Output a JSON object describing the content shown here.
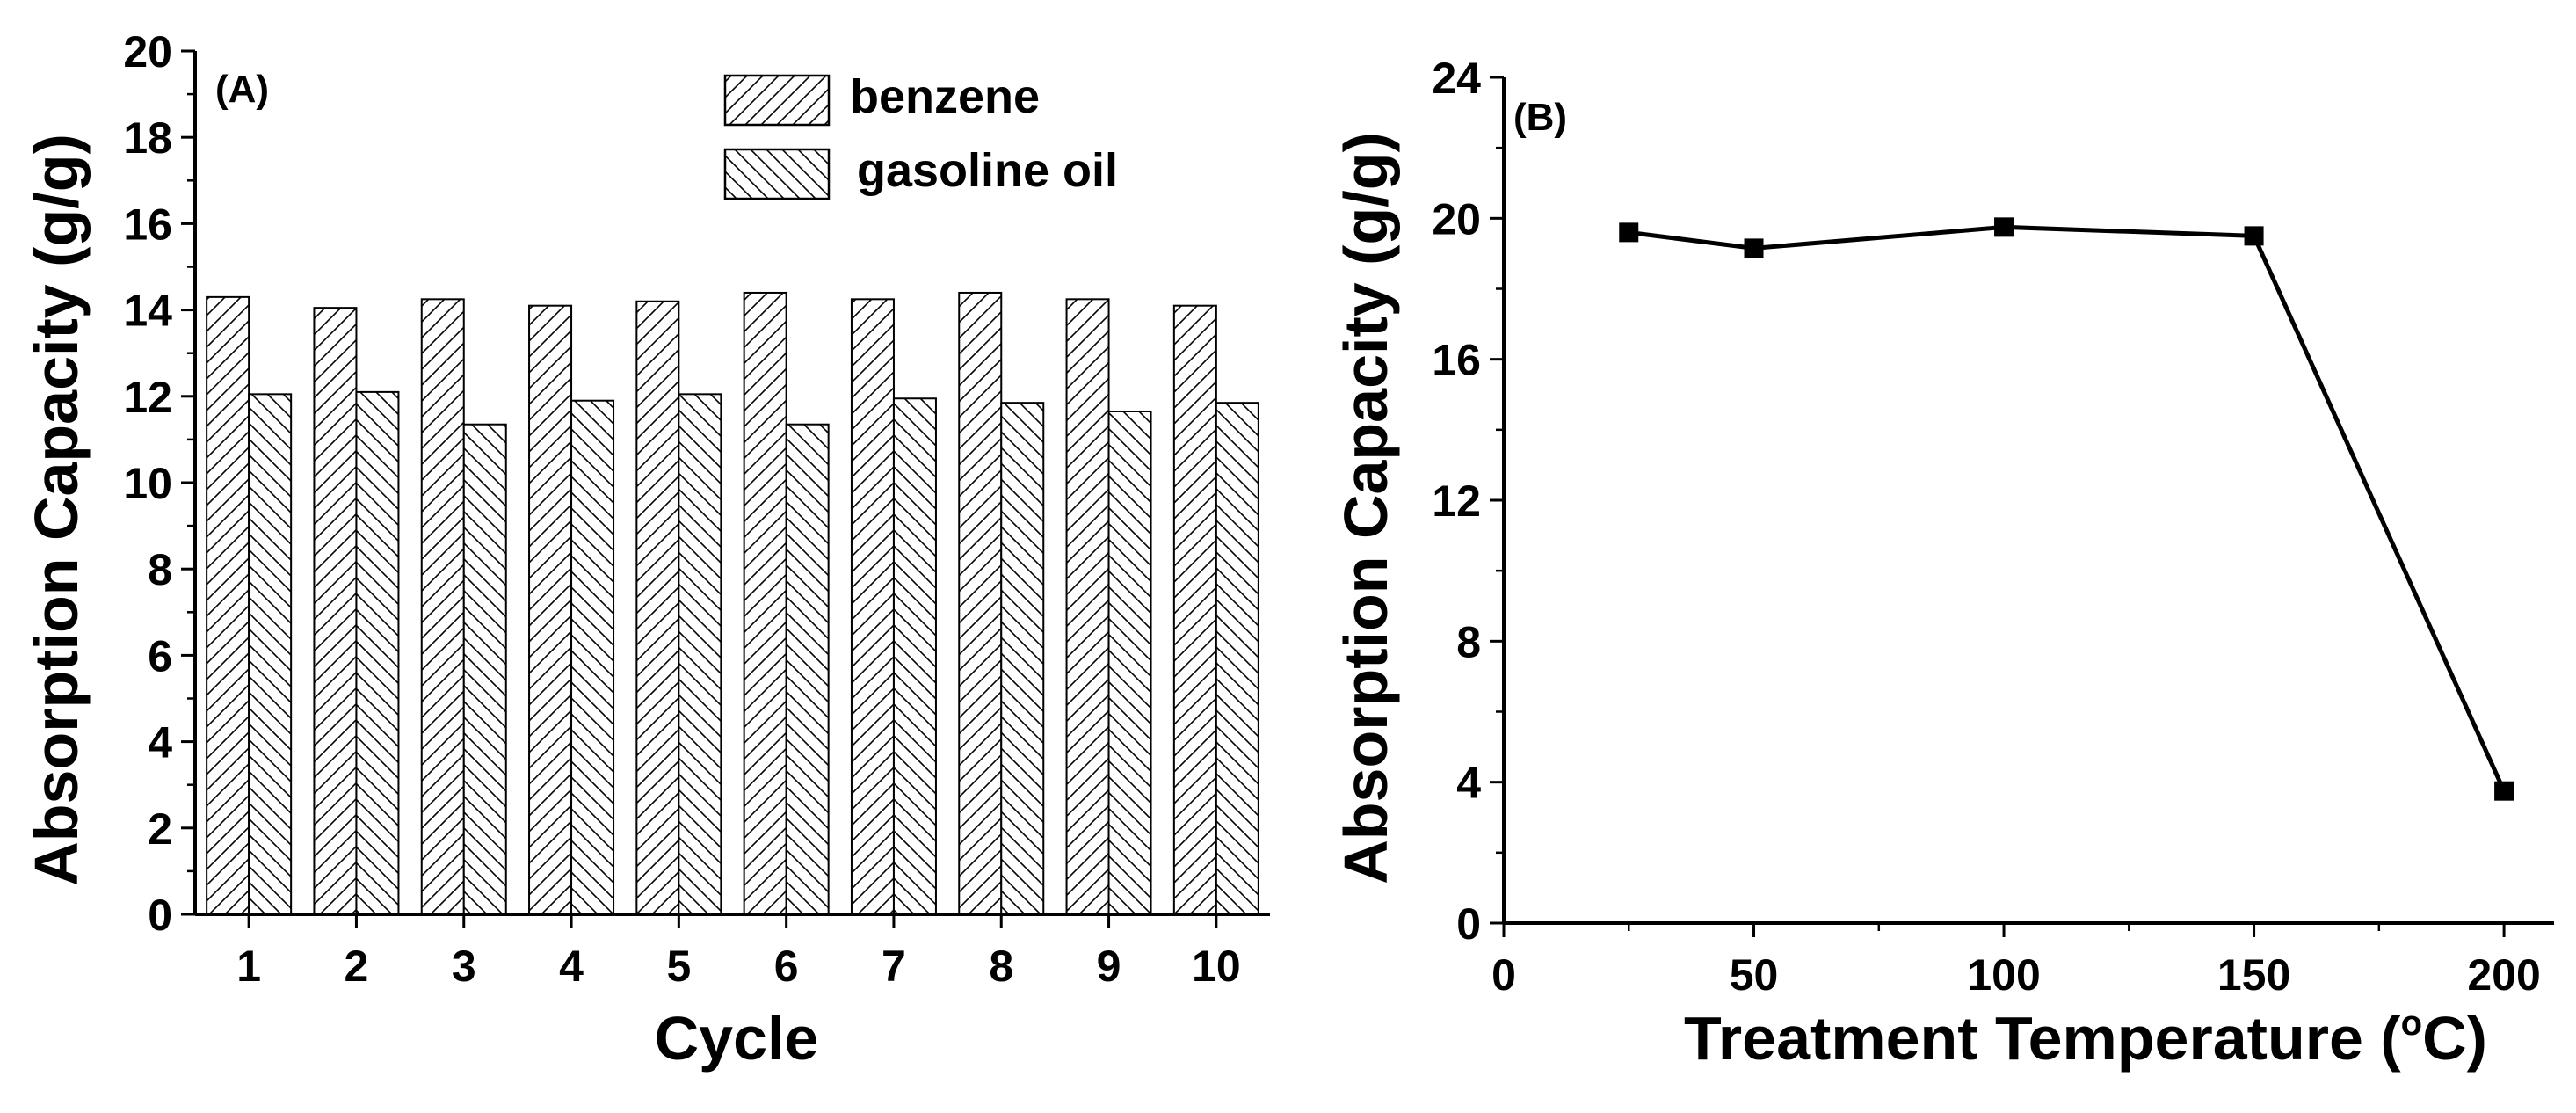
{
  "chart_data": [
    {
      "type": "bar",
      "panel_label": "(A)",
      "xlabel": "Cycle",
      "ylabel": "Absorption Capacity (g/g)",
      "categories": [
        "1",
        "2",
        "3",
        "4",
        "5",
        "6",
        "7",
        "8",
        "9",
        "10"
      ],
      "ylim": [
        0,
        20
      ],
      "yticks": [
        "0",
        "2",
        "4",
        "6",
        "8",
        "10",
        "12",
        "14",
        "16",
        "18",
        "20"
      ],
      "legend_position": "top-right",
      "grid": false,
      "series": [
        {
          "name": "benzene",
          "pattern": "forward-diagonal-hatch",
          "values": [
            14.3,
            14.05,
            14.25,
            14.1,
            14.2,
            14.4,
            14.25,
            14.4,
            14.25,
            14.1
          ]
        },
        {
          "name": "gasoline oil",
          "pattern": "backward-diagonal-hatch",
          "values": [
            12.05,
            12.1,
            11.35,
            11.9,
            12.05,
            11.35,
            11.95,
            11.85,
            11.65,
            11.85
          ]
        }
      ]
    },
    {
      "type": "line",
      "panel_label": "(B)",
      "xlabel": "Treatment Temperature (",
      "xlabel_unit_symbol": "o",
      "xlabel_unit_tail": "C)",
      "ylabel": "Absorption Capacity (g/g)",
      "xlim": [
        0,
        210
      ],
      "ylim": [
        0,
        24
      ],
      "xticks": [
        "0",
        "50",
        "100",
        "150",
        "200"
      ],
      "yticks": [
        "0",
        "4",
        "8",
        "12",
        "16",
        "20",
        "24"
      ],
      "marker": "filled-square",
      "grid": false,
      "series": [
        {
          "x": [
            25,
            50,
            100,
            150,
            200
          ],
          "y": [
            19.6,
            19.15,
            19.75,
            19.5,
            3.75
          ]
        }
      ]
    }
  ],
  "colors": {
    "ink": "#000000",
    "background": "#ffffff"
  }
}
